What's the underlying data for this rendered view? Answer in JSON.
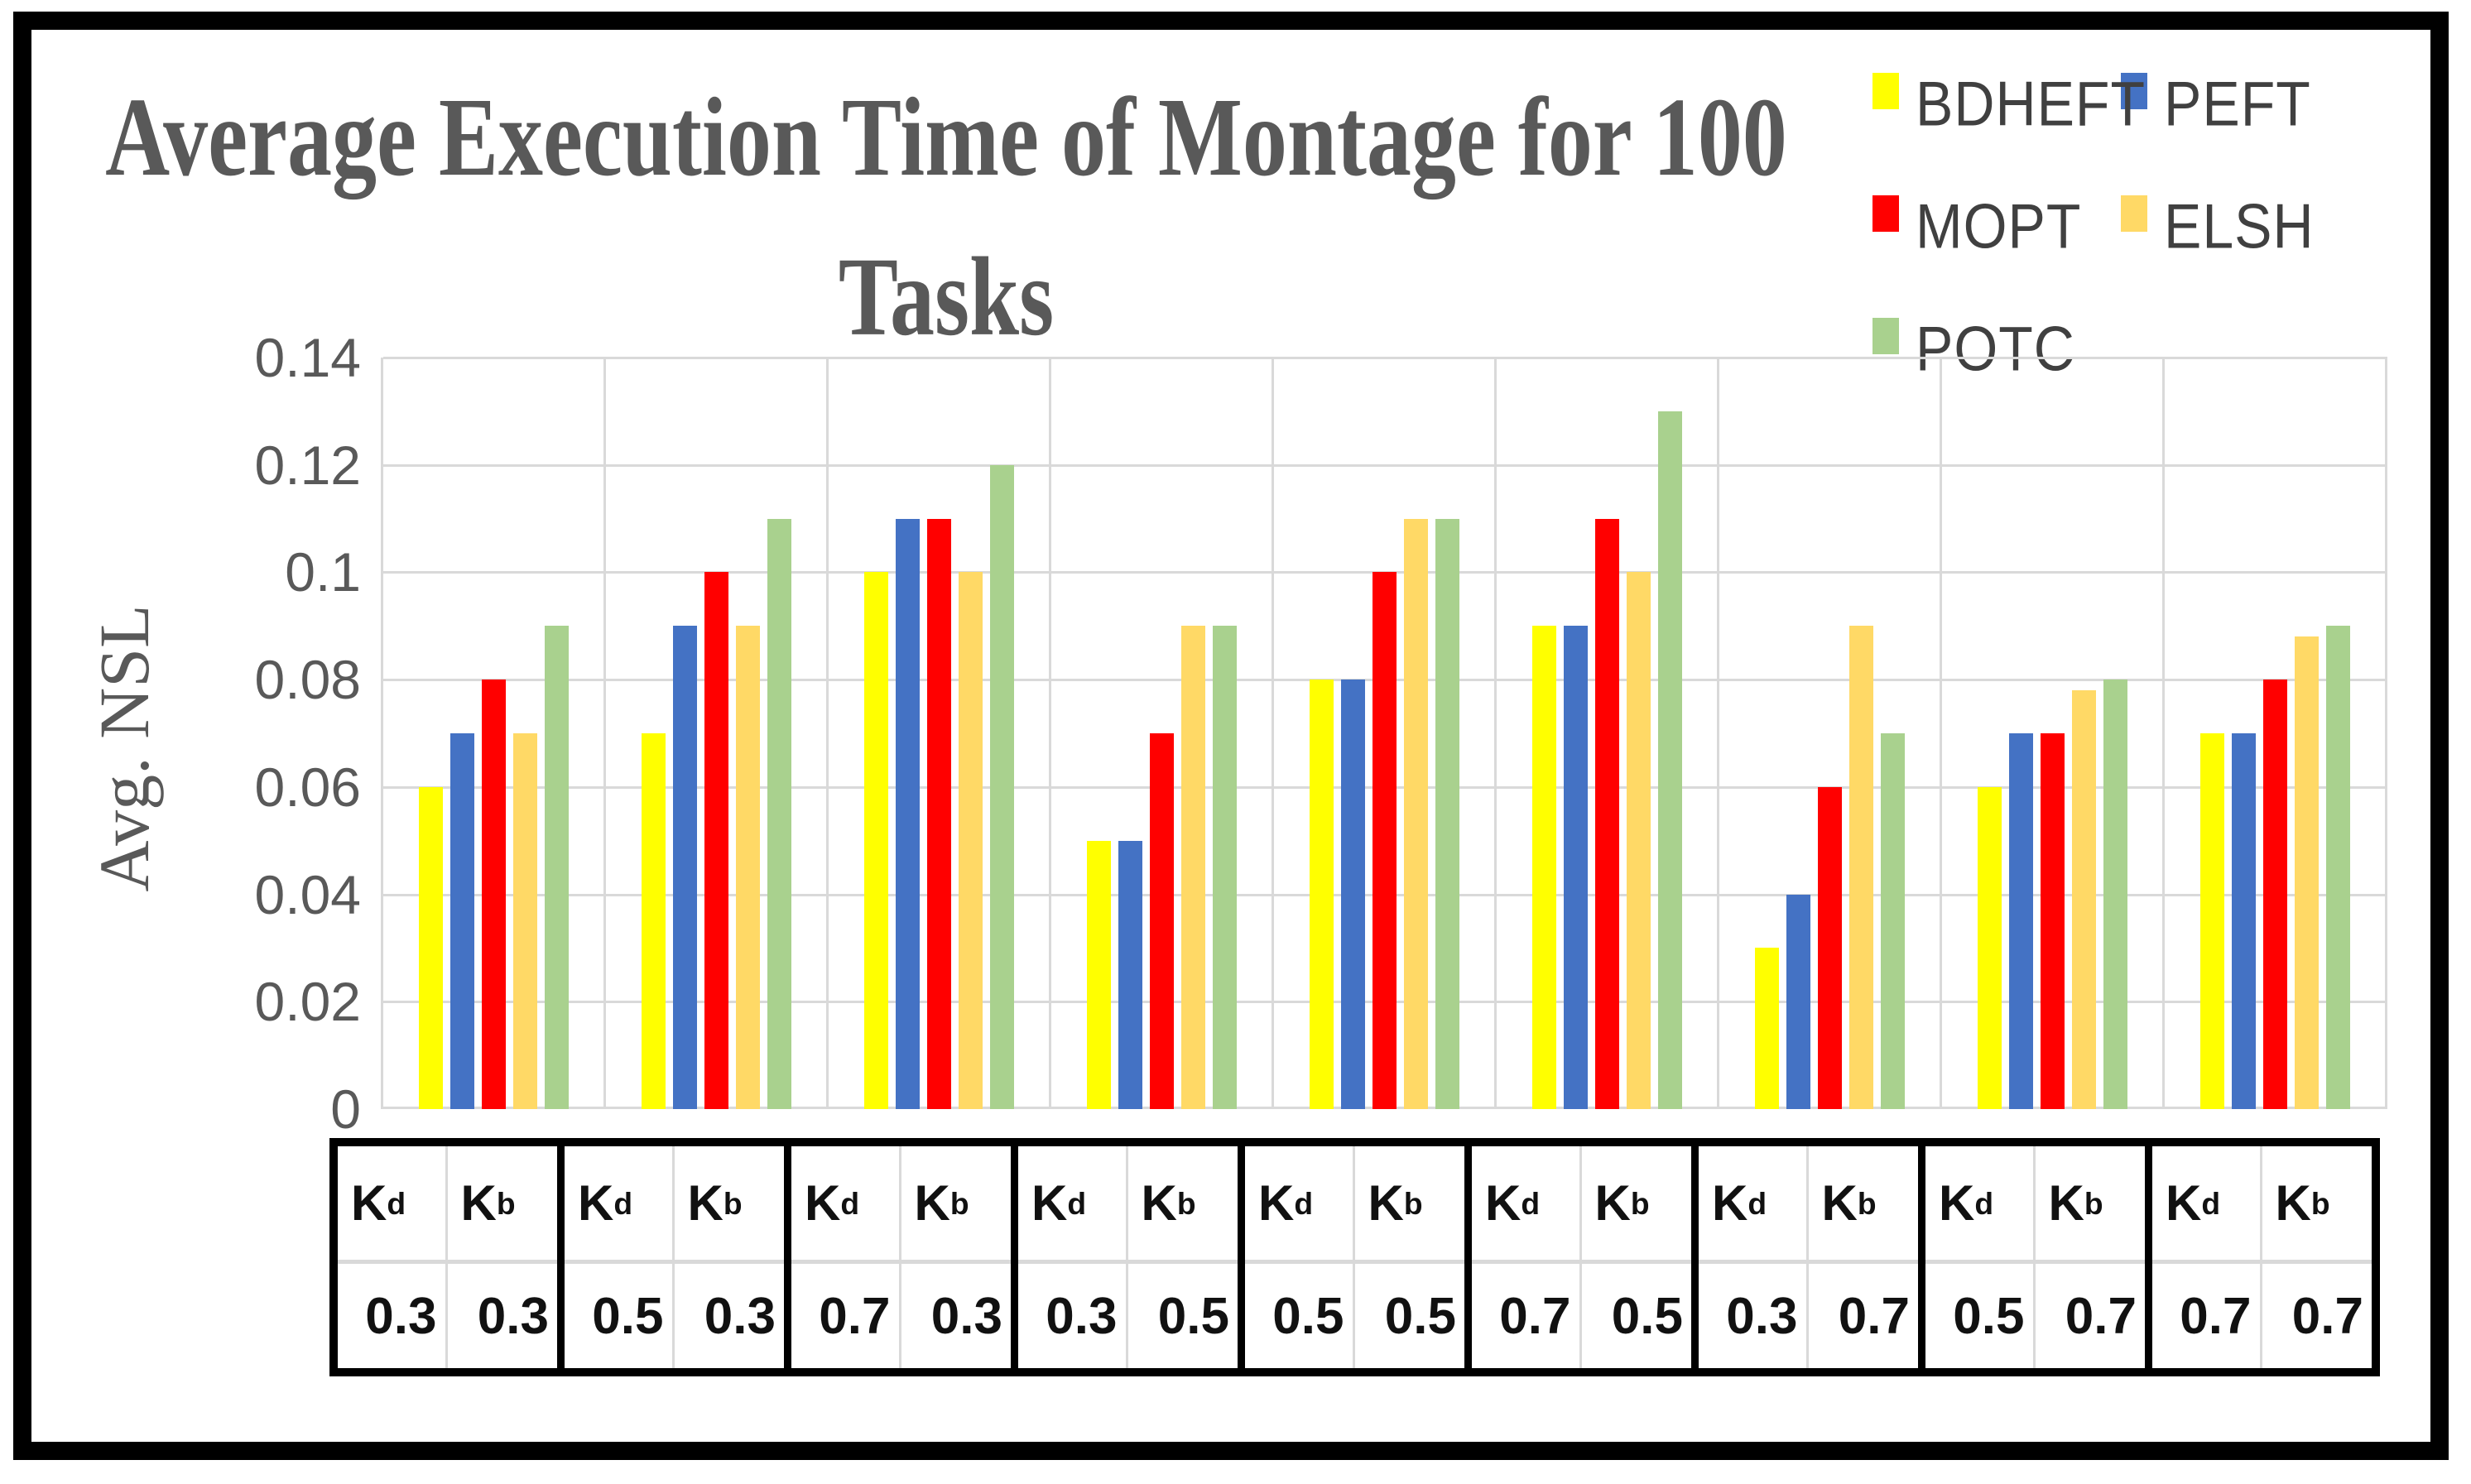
{
  "title": {
    "line1": "Average Execution Time of Montage for 100",
    "line2": "Tasks"
  },
  "y_axis": {
    "label": "Avg. NSL",
    "ticks": [
      "0.14",
      "0.12",
      "0.1",
      "0.08",
      "0.06",
      "0.04",
      "0.02",
      "0"
    ]
  },
  "x_table": {
    "kd_base": "K",
    "kd_sub": "d",
    "kb_base": "K",
    "kb_sub": "b"
  },
  "chart_data": {
    "type": "bar",
    "title": "Average Execution Time of Montage for 100 Tasks",
    "xlabel": "",
    "ylabel": "Avg. NSL",
    "ylim": [
      0,
      0.14
    ],
    "grid": true,
    "legend_position": "top-right",
    "categories": [
      {
        "kd": "0.3",
        "kb": "0.3"
      },
      {
        "kd": "0.5",
        "kb": "0.3"
      },
      {
        "kd": "0.7",
        "kb": "0.3"
      },
      {
        "kd": "0.3",
        "kb": "0.5"
      },
      {
        "kd": "0.5",
        "kb": "0.5"
      },
      {
        "kd": "0.7",
        "kb": "0.5"
      },
      {
        "kd": "0.3",
        "kb": "0.7"
      },
      {
        "kd": "0.5",
        "kb": "0.7"
      },
      {
        "kd": "0.7",
        "kb": "0.7"
      }
    ],
    "series": [
      {
        "name": "BDHEFT",
        "color": "#FFFF00",
        "values": [
          0.06,
          0.07,
          0.1,
          0.05,
          0.08,
          0.09,
          0.03,
          0.06,
          0.07
        ]
      },
      {
        "name": "PEFT",
        "color": "#4472C4",
        "values": [
          0.07,
          0.09,
          0.11,
          0.05,
          0.08,
          0.09,
          0.04,
          0.07,
          0.07
        ]
      },
      {
        "name": "MOPT",
        "color": "#FF0000",
        "values": [
          0.08,
          0.1,
          0.11,
          0.07,
          0.1,
          0.11,
          0.06,
          0.07,
          0.08
        ]
      },
      {
        "name": "ELSH",
        "color": "#FFD966",
        "values": [
          0.07,
          0.09,
          0.1,
          0.09,
          0.11,
          0.1,
          0.09,
          0.078,
          0.088
        ]
      },
      {
        "name": "POTC",
        "color": "#A9D18E",
        "values": [
          0.09,
          0.11,
          0.12,
          0.09,
          0.11,
          0.13,
          0.07,
          0.08,
          0.09
        ]
      }
    ],
    "colors": {
      "gridline": "#D9D9D9",
      "title_text": "#595959",
      "axis_text": "#595959",
      "legend_text": "#404040",
      "table_text": "#111111"
    }
  }
}
